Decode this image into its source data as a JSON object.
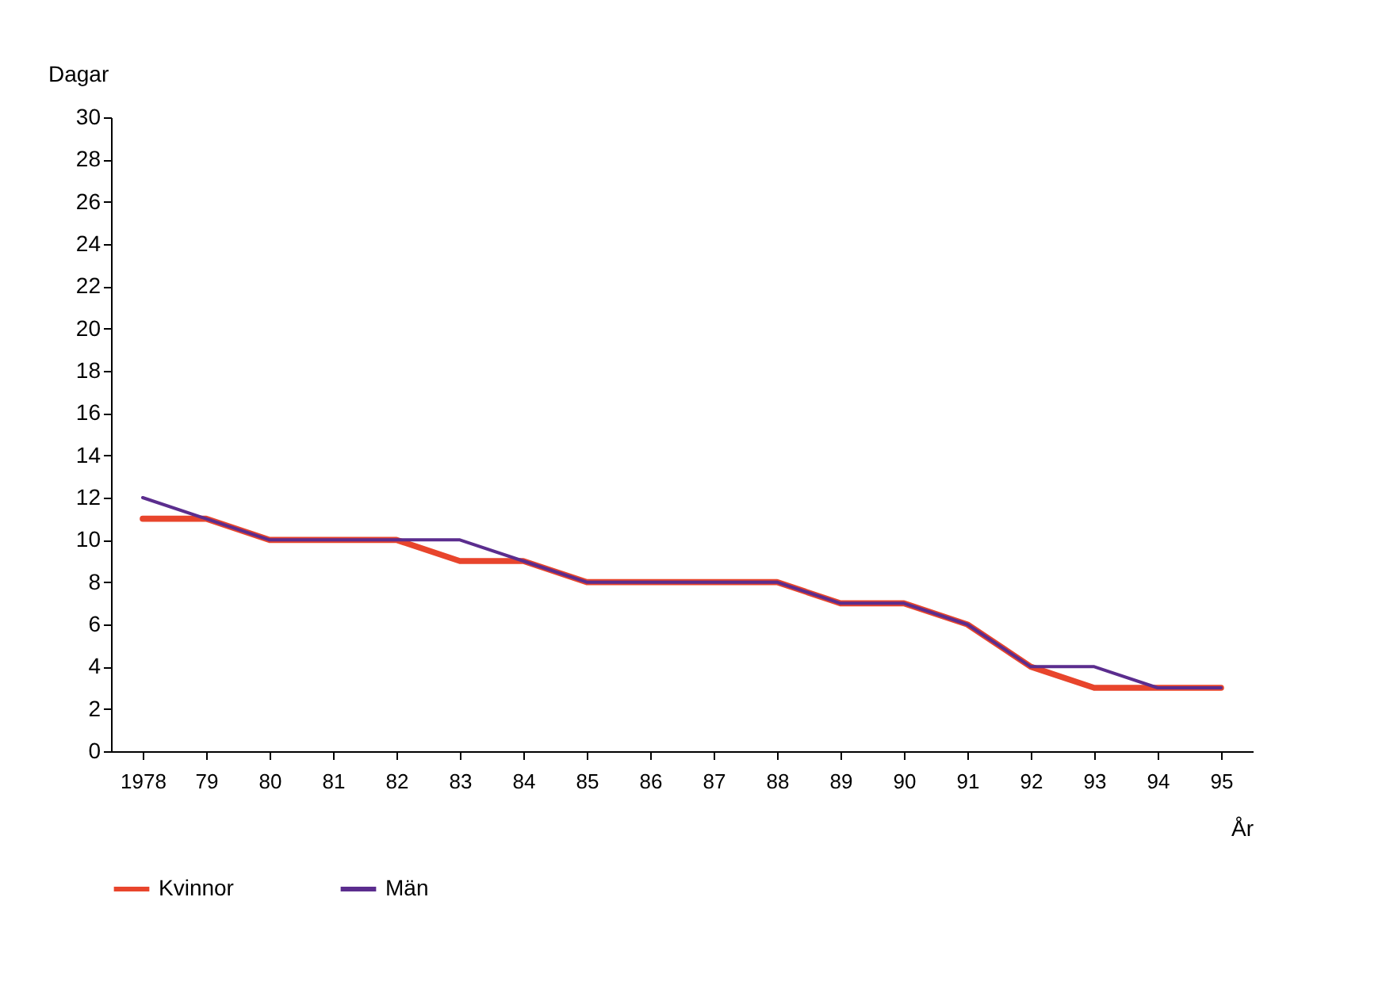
{
  "chart_data": {
    "type": "line",
    "ylabel": "Dagar",
    "xlabel": "År",
    "categories": [
      "1978",
      "79",
      "80",
      "81",
      "82",
      "83",
      "84",
      "85",
      "86",
      "87",
      "88",
      "89",
      "90",
      "91",
      "92",
      "93",
      "94",
      "95"
    ],
    "series": [
      {
        "name": "Kvinnor",
        "color": "#e8452c",
        "values": [
          11,
          11,
          10,
          10,
          10,
          9,
          9,
          8,
          8,
          8,
          8,
          7,
          7,
          6,
          4,
          3,
          3,
          3
        ]
      },
      {
        "name": "Män",
        "color": "#5b2d8e",
        "values": [
          12,
          11,
          10,
          10,
          10,
          10,
          9,
          8,
          8,
          8,
          8,
          7,
          7,
          6,
          4,
          4,
          3,
          3
        ]
      }
    ],
    "ylim": [
      0,
      30
    ],
    "yticks": [
      0,
      2,
      4,
      6,
      8,
      10,
      12,
      14,
      16,
      18,
      20,
      22,
      24,
      26,
      28,
      30
    ],
    "grid": false,
    "legend": "bottom",
    "marker": "none",
    "line_style": "solid"
  }
}
